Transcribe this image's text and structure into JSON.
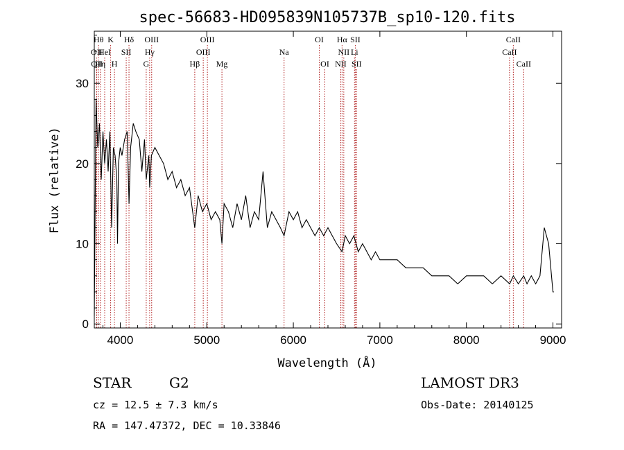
{
  "chart_data": {
    "type": "line",
    "title": "spec-56683-HD095839N105737B_sp10-120.fits",
    "xlabel": "Wavelength (Å)",
    "ylabel": "Flux (relative)",
    "xlim": [
      3700,
      9100
    ],
    "ylim": [
      -0.5,
      36.5
    ],
    "x_ticks": [
      4000,
      5000,
      6000,
      7000,
      8000,
      9000
    ],
    "y_ticks": [
      0,
      10,
      20,
      30
    ],
    "grid": false,
    "series": [
      {
        "x": [
          3700,
          3720,
          3740,
          3760,
          3780,
          3800,
          3820,
          3840,
          3860,
          3880,
          3900,
          3920,
          3940,
          3960,
          3968,
          3980,
          4000,
          4020,
          4050,
          4080,
          4101,
          4120,
          4150,
          4180,
          4220,
          4250,
          4280,
          4300,
          4330,
          4340,
          4360,
          4400,
          4450,
          4500,
          4550,
          4600,
          4650,
          4700,
          4750,
          4800,
          4861,
          4900,
          4950,
          5000,
          5050,
          5100,
          5150,
          5175,
          5200,
          5250,
          5300,
          5350,
          5400,
          5450,
          5500,
          5550,
          5600,
          5650,
          5700,
          5750,
          5800,
          5850,
          5893,
          5950,
          6000,
          6050,
          6100,
          6150,
          6200,
          6250,
          6300,
          6350,
          6400,
          6450,
          6500,
          6563,
          6600,
          6650,
          6700,
          6750,
          6800,
          6850,
          6900,
          6950,
          7000,
          7100,
          7200,
          7300,
          7400,
          7500,
          7600,
          7700,
          7800,
          7900,
          8000,
          8100,
          8200,
          8300,
          8400,
          8500,
          8542,
          8600,
          8662,
          8700,
          8750,
          8800,
          8850,
          8900,
          8950,
          9000,
          9010
        ],
        "y": [
          1,
          28,
          22,
          25,
          18,
          24,
          20,
          23,
          19,
          24,
          12,
          22,
          21,
          18,
          10,
          20,
          22,
          21,
          23,
          24,
          15,
          22,
          25,
          24,
          23,
          19,
          23,
          18,
          21,
          17,
          21,
          22,
          21,
          20,
          18,
          19,
          17,
          18,
          16,
          17,
          12,
          16,
          14,
          15,
          13,
          14,
          13,
          10,
          15,
          14,
          12,
          15,
          13,
          16,
          12,
          14,
          13,
          19,
          12,
          14,
          13,
          12,
          11,
          14,
          13,
          14,
          12,
          13,
          12,
          11,
          12,
          11,
          12,
          11,
          10,
          9,
          11,
          10,
          11,
          9,
          10,
          9,
          8,
          9,
          8,
          8,
          8,
          7,
          7,
          7,
          6,
          6,
          6,
          5,
          6,
          6,
          6,
          5,
          6,
          5,
          6,
          5,
          6,
          5,
          6,
          5,
          6,
          12,
          10,
          4,
          4
        ]
      }
    ],
    "line_markers": [
      {
        "wl": 3726,
        "row": 1,
        "label": "OII"
      },
      {
        "wl": 3729,
        "row": 2,
        "label": "OII"
      },
      {
        "wl": 3750,
        "row": 0,
        "label": "Hθ"
      },
      {
        "wl": 3770,
        "row": 2,
        "label": "Hη"
      },
      {
        "wl": 3820,
        "row": 1,
        "label": "HeI"
      },
      {
        "wl": 3889,
        "row": 0,
        "label": "K"
      },
      {
        "wl": 3933,
        "row": 2,
        "label": "H"
      },
      {
        "wl": 4069,
        "row": 1,
        "label": "SII"
      },
      {
        "wl": 4101,
        "row": 0,
        "label": "Hδ"
      },
      {
        "wl": 4300,
        "row": 2,
        "label": "G"
      },
      {
        "wl": 4340,
        "row": 1,
        "label": "Hγ"
      },
      {
        "wl": 4363,
        "row": 0,
        "label": "OIII"
      },
      {
        "wl": 4861,
        "row": 2,
        "label": "Hβ"
      },
      {
        "wl": 4959,
        "row": 1,
        "label": "OIII"
      },
      {
        "wl": 5007,
        "row": 0,
        "label": "OIII"
      },
      {
        "wl": 5175,
        "row": 2,
        "label": "Mg"
      },
      {
        "wl": 5893,
        "row": 1,
        "label": "Na"
      },
      {
        "wl": 6300,
        "row": 0,
        "label": "OI"
      },
      {
        "wl": 6364,
        "row": 2,
        "label": "OI"
      },
      {
        "wl": 6548,
        "row": 2,
        "label": "NII"
      },
      {
        "wl": 6563,
        "row": 0,
        "label": "Hα"
      },
      {
        "wl": 6583,
        "row": 1,
        "label": "NII"
      },
      {
        "wl": 6707,
        "row": 1,
        "label": "Li"
      },
      {
        "wl": 6716,
        "row": 0,
        "label": "SII"
      },
      {
        "wl": 6731,
        "row": 2,
        "label": "SII"
      },
      {
        "wl": 8498,
        "row": 1,
        "label": "CaII"
      },
      {
        "wl": 8542,
        "row": 0,
        "label": "CaII"
      },
      {
        "wl": 8662,
        "row": 2,
        "label": "CaII"
      }
    ]
  },
  "info": {
    "class_label": "STAR",
    "subclass": "G2",
    "survey": "LAMOST DR3",
    "cz": "cz = 12.5 ± 7.3 km/s",
    "obs_date": "Obs-Date: 20140125",
    "coords": "RA = 147.47372, DEC =  10.33846"
  },
  "colors": {
    "line_marker": "#b22222",
    "spectrum": "#000000",
    "axes": "#000000"
  }
}
